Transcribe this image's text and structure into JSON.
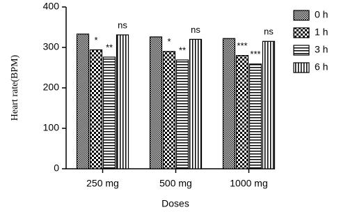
{
  "chart_data": {
    "type": "bar",
    "y_label": "Heart rate(BPM)",
    "x_label": "Doses",
    "categories": [
      "250 mg",
      "500 mg",
      "1000 mg"
    ],
    "series": [
      {
        "name": "0 h",
        "pattern": "checker-fine",
        "values": [
          333,
          326,
          322
        ]
      },
      {
        "name": "1 h",
        "pattern": "checker",
        "values": [
          294,
          290,
          280
        ],
        "annotations": [
          "*",
          "*",
          "***"
        ]
      },
      {
        "name": "3 h",
        "pattern": "hlines",
        "values": [
          276,
          269,
          259
        ],
        "annotations": [
          "**",
          "**",
          "***"
        ]
      },
      {
        "name": "6 h",
        "pattern": "vlines",
        "values": [
          331,
          320,
          315
        ],
        "annotations": [
          "ns",
          "ns",
          "ns"
        ]
      }
    ],
    "ylim": [
      0,
      400
    ],
    "yticks": [
      0,
      100,
      200,
      300,
      400
    ],
    "legend": "right"
  }
}
